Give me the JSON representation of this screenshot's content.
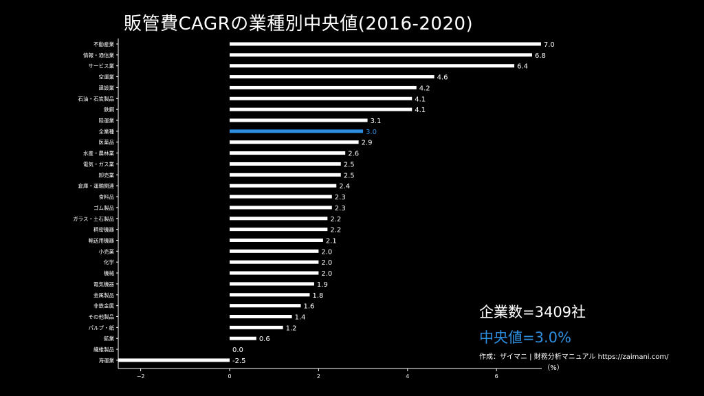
{
  "title": "販管費CAGRの業種別中央値(2016-2020)",
  "company_count": "企業数=3409社",
  "median_text": "中央値=3.0%",
  "credit": "作成：ザイマニ | 財務分析マニュアル https://zaimani.com/",
  "colors": {
    "bar": "#ffffff",
    "highlight": "#2e8fe0",
    "background": "#000000"
  },
  "chart_data": {
    "type": "bar",
    "orientation": "horizontal",
    "xlabel": "（%）",
    "xlim": [
      -2.5,
      7.0
    ],
    "xticks": [
      -2,
      0,
      2,
      4,
      6
    ],
    "xtick_labels": [
      "−2",
      "0",
      "2",
      "4",
      "6"
    ],
    "highlight_category": "全業種",
    "categories": [
      "不動産業",
      "情報・通信業",
      "サービス業",
      "空運業",
      "建設業",
      "石油・石炭製品",
      "鉄鋼",
      "陸運業",
      "全業種",
      "医薬品",
      "水産・農林業",
      "電気・ガス業",
      "卸売業",
      "倉庫・運輸関連",
      "食料品",
      "ゴム製品",
      "ガラス・土石製品",
      "精密機器",
      "輸送用機器",
      "小売業",
      "化学",
      "機械",
      "電気機器",
      "金属製品",
      "非鉄金属",
      "その他製品",
      "パルプ・紙",
      "鉱業",
      "繊維製品",
      "海運業"
    ],
    "values": [
      7.0,
      6.8,
      6.4,
      4.6,
      4.2,
      4.1,
      4.1,
      3.1,
      3.0,
      2.9,
      2.6,
      2.5,
      2.5,
      2.4,
      2.3,
      2.3,
      2.2,
      2.2,
      2.1,
      2.0,
      2.0,
      2.0,
      1.9,
      1.8,
      1.6,
      1.4,
      1.2,
      0.6,
      0.0,
      -2.5
    ],
    "value_labels": [
      "7.0",
      "6.8",
      "6.4",
      "4.6",
      "4.2",
      "4.1",
      "4.1",
      "3.1",
      "3.0",
      "2.9",
      "2.6",
      "2.5",
      "2.5",
      "2.4",
      "2.3",
      "2.3",
      "2.2",
      "2.2",
      "2.1",
      "2.0",
      "2.0",
      "2.0",
      "1.9",
      "1.8",
      "1.6",
      "1.4",
      "1.2",
      "0.6",
      "0.0",
      "-2.5"
    ]
  }
}
